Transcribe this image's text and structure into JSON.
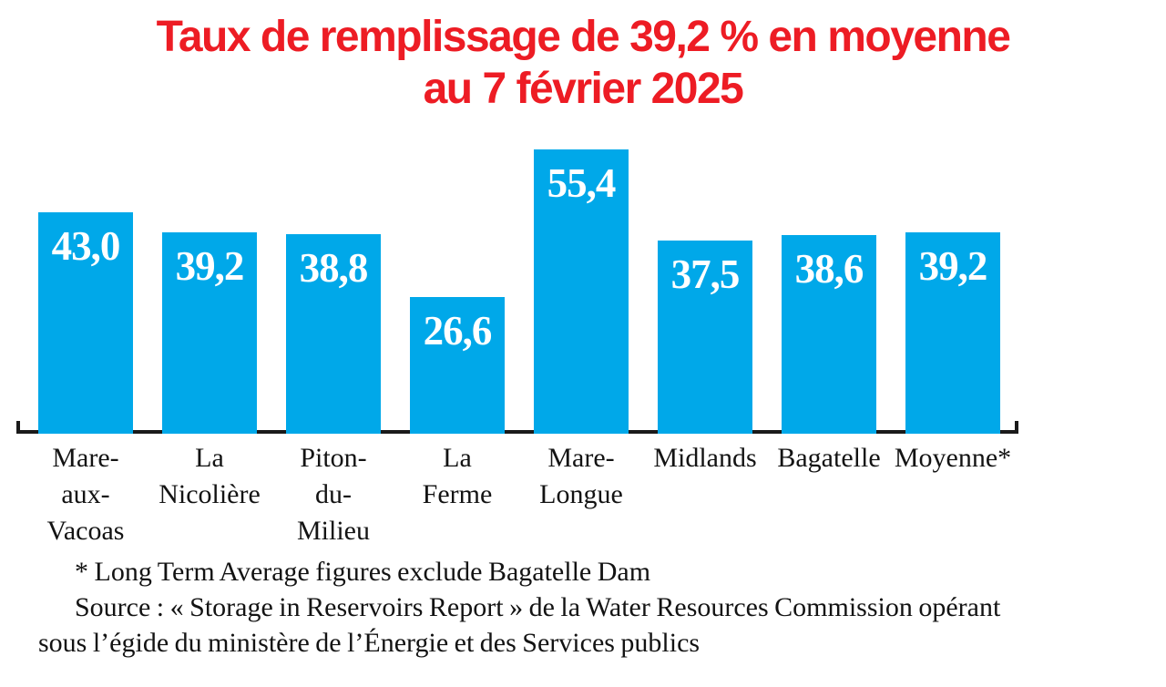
{
  "title": {
    "line1": "Taux de remplissage de 39,2 % en moyenne",
    "line2": "au 7 février 2025",
    "color": "#ed1c24"
  },
  "chart_data": {
    "type": "bar",
    "title": "Taux de remplissage de 39,2 % en moyenne au 7 février 2025",
    "categories": [
      "Mare-aux-Vacoas",
      "La Nicolière",
      "Piton-du-Milieu",
      "La Ferme",
      "Mare-Longue",
      "Midlands",
      "Bagatelle",
      "Moyenne*"
    ],
    "category_labels_wrapped": [
      "Mare-\naux-\nVacoas",
      "La\nNicolière",
      "Piton-\ndu-\nMilieu",
      "La\nFerme",
      "Mare-\nLongue",
      "Midlands",
      "Bagatelle",
      "Moyenne*"
    ],
    "values": [
      43.0,
      39.2,
      38.8,
      26.6,
      55.4,
      37.5,
      38.6,
      39.2
    ],
    "value_labels": [
      "43,0",
      "39,2",
      "38,8",
      "26,6",
      "55,4",
      "37,5",
      "38,6",
      "39,2"
    ],
    "unit": "%",
    "xlabel": "",
    "ylabel": "",
    "ylim": [
      0,
      60
    ],
    "grid": false,
    "legend": false,
    "bar_color": "#00a8e9",
    "value_label_color": "#ffffff",
    "axis_color": "#1a1a1a",
    "category_label_color": "#131313"
  },
  "footnotes": {
    "note": "* Long Term Average figures exclude Bagatelle Dam",
    "source": "Source : « Storage in Reservoirs Report » de la Water Resources Commission opérant sous l’égide du ministère de l’Énergie et des Services publics"
  }
}
